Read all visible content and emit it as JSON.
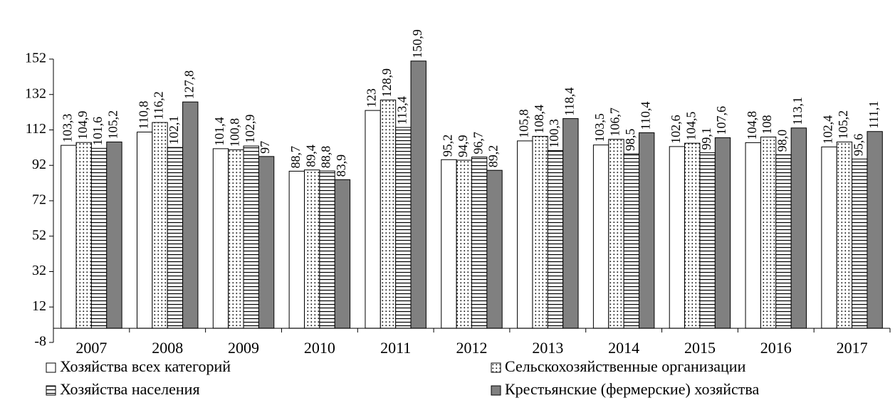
{
  "chart_data": {
    "type": "bar",
    "categories": [
      "2007",
      "2008",
      "2009",
      "2010",
      "2011",
      "2012",
      "2013",
      "2014",
      "2015",
      "2016",
      "2017"
    ],
    "series": [
      {
        "name": "Хозяйства всех категорий",
        "color": "#ffffff",
        "pattern": "solid",
        "values": [
          103.3,
          110.8,
          101.4,
          88.7,
          123,
          95.2,
          105.8,
          103.5,
          102.6,
          104.8,
          102.4
        ],
        "value_labels": [
          "103,3",
          "110,8",
          "101,4",
          "88,7",
          "123",
          "95,2",
          "105,8",
          "103,5",
          "102,6",
          "104,8",
          "102,4"
        ]
      },
      {
        "name": "Сельскохозяйственные организации",
        "color": "#ffffff",
        "pattern": "dots",
        "values": [
          104.9,
          116.2,
          100.8,
          89.4,
          128.9,
          94.9,
          108.4,
          106.7,
          104.5,
          108,
          105.2
        ],
        "value_labels": [
          "104,9",
          "116,2",
          "100,8",
          "89,4",
          "128,9",
          "94,9",
          "108,4",
          "106,7",
          "104,5",
          "108",
          "105,2"
        ]
      },
      {
        "name": "Хозяйства населения",
        "color": "#ffffff",
        "pattern": "hlines",
        "values": [
          101.6,
          102.1,
          102.9,
          88.8,
          113.4,
          96.7,
          100.3,
          98.5,
          99.1,
          98.0,
          95.6
        ],
        "value_labels": [
          "101,6",
          "102,1",
          "102,9",
          "88,8",
          "113,4",
          "96,7",
          "100,3",
          "98,5",
          "99,1",
          "98,0",
          "95,6"
        ]
      },
      {
        "name": "Крестьянские (фермерские) хозяйства",
        "color": "#808080",
        "pattern": "solid",
        "values": [
          105.2,
          127.8,
          97,
          83.9,
          150.9,
          89.2,
          118.4,
          110.4,
          107.6,
          113.1,
          111.1
        ],
        "value_labels": [
          "105,2",
          "127,8",
          "97",
          "83,9",
          "150,9",
          "89,2",
          "118,4",
          "110,4",
          "107,6",
          "113,1",
          "111,1"
        ]
      }
    ],
    "ylim": [
      -8,
      152
    ],
    "yticks": [
      -8,
      12,
      32,
      52,
      72,
      92,
      112,
      132,
      152
    ],
    "grid": false,
    "legend": "bottom"
  }
}
